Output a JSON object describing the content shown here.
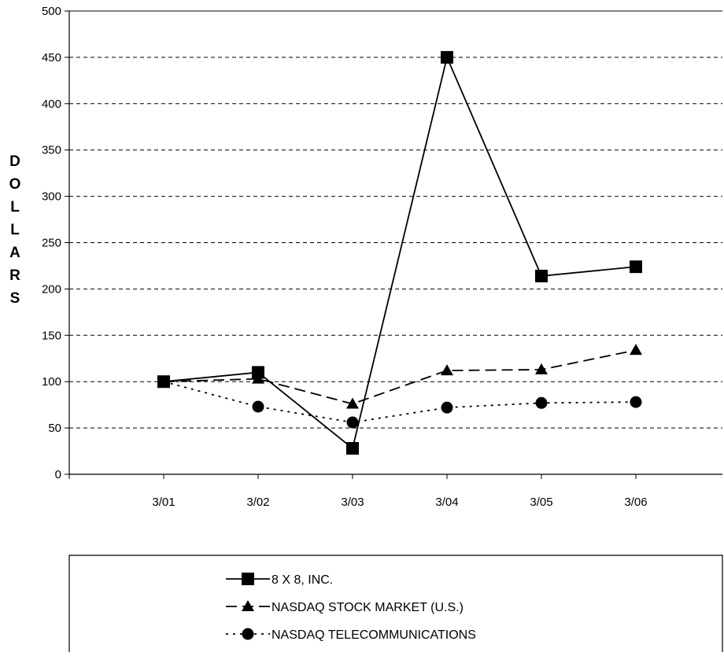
{
  "chart_data": {
    "type": "line",
    "categories": [
      "3/01",
      "3/02",
      "3/03",
      "3/04",
      "3/05",
      "3/06"
    ],
    "series": [
      {
        "name": "8 X 8, INC.",
        "values": [
          100,
          110,
          28,
          450,
          214,
          224
        ],
        "marker": "square",
        "dash": "solid"
      },
      {
        "name": "NASDAQ STOCK MARKET (U.S.)",
        "values": [
          100,
          103,
          76,
          112,
          113,
          134
        ],
        "marker": "triangle",
        "dash": "dashed"
      },
      {
        "name": "NASDAQ TELECOMMUNICATIONS",
        "values": [
          100,
          73,
          56,
          72,
          77,
          78
        ],
        "marker": "circle",
        "dash": "dotted"
      }
    ],
    "title": "",
    "xlabel": "",
    "ylabel": "DOLLARS",
    "ylim": [
      0,
      500
    ],
    "yticks": [
      0,
      50,
      100,
      150,
      200,
      250,
      300,
      350,
      400,
      450,
      500
    ],
    "ytick_labels": [
      "0",
      "50",
      "100",
      "150",
      "200",
      "250",
      "300",
      "350",
      "400",
      "450",
      "500"
    ],
    "grid": "horizontal-dashed",
    "legend_position": "bottom"
  },
  "colors": {
    "line": "#000000",
    "background": "#ffffff"
  }
}
